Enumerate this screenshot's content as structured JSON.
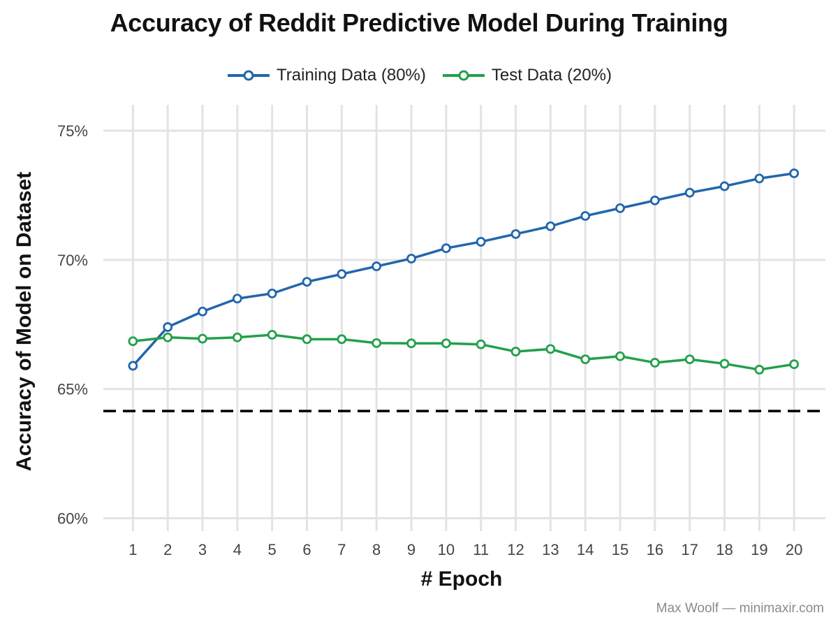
{
  "title": "Accuracy of Reddit Predictive Model During Training",
  "credit": "Max Woolf — minimaxir.com",
  "colors": {
    "training": "#2166ac",
    "test": "#22a04b",
    "grid": "#e3e3e3",
    "baseline": "#000000",
    "tick_text": "#444444",
    "axis_title": "#111111"
  },
  "chart_data": {
    "type": "line",
    "title": "Accuracy of Reddit Predictive Model During Training",
    "xlabel": "# Epoch",
    "ylabel": "Accuracy of Model on Dataset",
    "x": [
      1,
      2,
      3,
      4,
      5,
      6,
      7,
      8,
      9,
      10,
      11,
      12,
      13,
      14,
      15,
      16,
      17,
      18,
      19,
      20
    ],
    "x_tick_labels": [
      "1",
      "2",
      "3",
      "4",
      "5",
      "6",
      "7",
      "8",
      "9",
      "10",
      "11",
      "12",
      "13",
      "14",
      "15",
      "16",
      "17",
      "18",
      "19",
      "20"
    ],
    "ylim": [
      59.5,
      76
    ],
    "y_ticks": [
      60,
      65,
      70,
      75
    ],
    "y_tick_labels": [
      "60%",
      "65%",
      "70%",
      "75%"
    ],
    "y_unit": "%",
    "grid": true,
    "legend_position": "top",
    "series": [
      {
        "name": "Training Data (80%)",
        "color": "#2166ac",
        "marker": "open-circle",
        "values": [
          65.9,
          67.4,
          68.0,
          68.5,
          68.7,
          69.15,
          69.45,
          69.75,
          70.05,
          70.45,
          70.7,
          71.0,
          71.3,
          71.7,
          72.0,
          72.3,
          72.6,
          72.85,
          73.15,
          73.35
        ]
      },
      {
        "name": "Test Data (20%)",
        "color": "#22a04b",
        "marker": "open-circle",
        "values": [
          66.85,
          67.0,
          66.95,
          67.0,
          67.1,
          66.93,
          66.93,
          66.78,
          66.77,
          66.77,
          66.73,
          66.45,
          66.55,
          66.15,
          66.27,
          66.02,
          66.15,
          65.98,
          65.75,
          65.96
        ]
      }
    ],
    "reference_lines": [
      {
        "y": 64.15,
        "style": "dashed",
        "color": "#000000"
      }
    ]
  }
}
